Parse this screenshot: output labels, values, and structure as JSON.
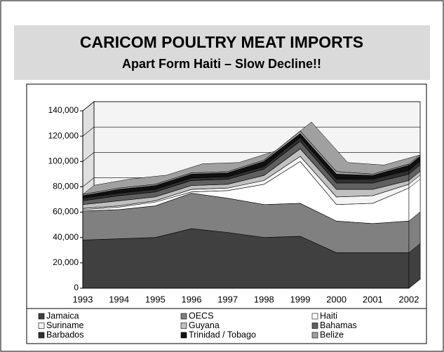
{
  "chart_data": {
    "type": "stacked_area",
    "title": "CARICOM POULTRY MEAT IMPORTS",
    "subtitle": "Apart Form Haiti – Slow Decline!!",
    "categories": [
      "1993",
      "1994",
      "1995",
      "1996",
      "1997",
      "1998",
      "1999",
      "2000",
      "2001",
      "2002"
    ],
    "series": [
      {
        "name": "Jamaica",
        "color": "#404040",
        "values": [
          38000,
          39000,
          40000,
          47000,
          44000,
          40000,
          41000,
          28000,
          28000,
          28000
        ]
      },
      {
        "name": "OECS",
        "color": "#808080",
        "values": [
          23000,
          23000,
          25000,
          28000,
          27000,
          26000,
          26000,
          25000,
          23000,
          25000
        ]
      },
      {
        "name": "Haiti",
        "color": "#ffffff",
        "values": [
          1000,
          2000,
          3000,
          1000,
          6000,
          16000,
          33000,
          13000,
          16000,
          26000
        ]
      },
      {
        "name": "Suriname",
        "color": "#f4f4f4",
        "values": [
          1000,
          1000,
          1000,
          2000,
          2000,
          3000,
          4000,
          6000,
          6000,
          3000
        ]
      },
      {
        "name": "Guyana",
        "color": "#c0c0c0",
        "values": [
          3000,
          4000,
          3000,
          3000,
          3000,
          4000,
          6000,
          6000,
          5000,
          3000
        ]
      },
      {
        "name": "Bahamas",
        "color": "#606060",
        "values": [
          3000,
          4000,
          4000,
          4000,
          4000,
          5000,
          6000,
          5000,
          5000,
          5000
        ]
      },
      {
        "name": "Barbados",
        "color": "#303030",
        "values": [
          2000,
          2000,
          2000,
          2000,
          2000,
          2000,
          3000,
          3000,
          3000,
          3000
        ]
      },
      {
        "name": "Trinidad / Tobago",
        "color": "#101010",
        "values": [
          2000,
          3000,
          3000,
          3000,
          3000,
          4000,
          3000,
          4000,
          3000,
          4000
        ]
      },
      {
        "name": "Belize",
        "color": "#a0a0a0",
        "values": [
          1000,
          1000,
          1000,
          1000,
          1000,
          1000,
          2000,
          2000,
          1000,
          1000
        ]
      }
    ],
    "ylim": [
      0,
      140000
    ],
    "yticks": [
      0,
      {
        "value": 20000,
        "label": "20,000"
      },
      {
        "value": 40000,
        "label": "40,000"
      },
      {
        "value": 60000,
        "label": "60,000"
      },
      {
        "value": 80000,
        "label": "80,000"
      },
      {
        "value": 100000,
        "label": "100,000"
      },
      {
        "value": 120000,
        "label": "120,000"
      },
      {
        "value": 140000,
        "label": "140,000"
      }
    ],
    "grid": true
  }
}
